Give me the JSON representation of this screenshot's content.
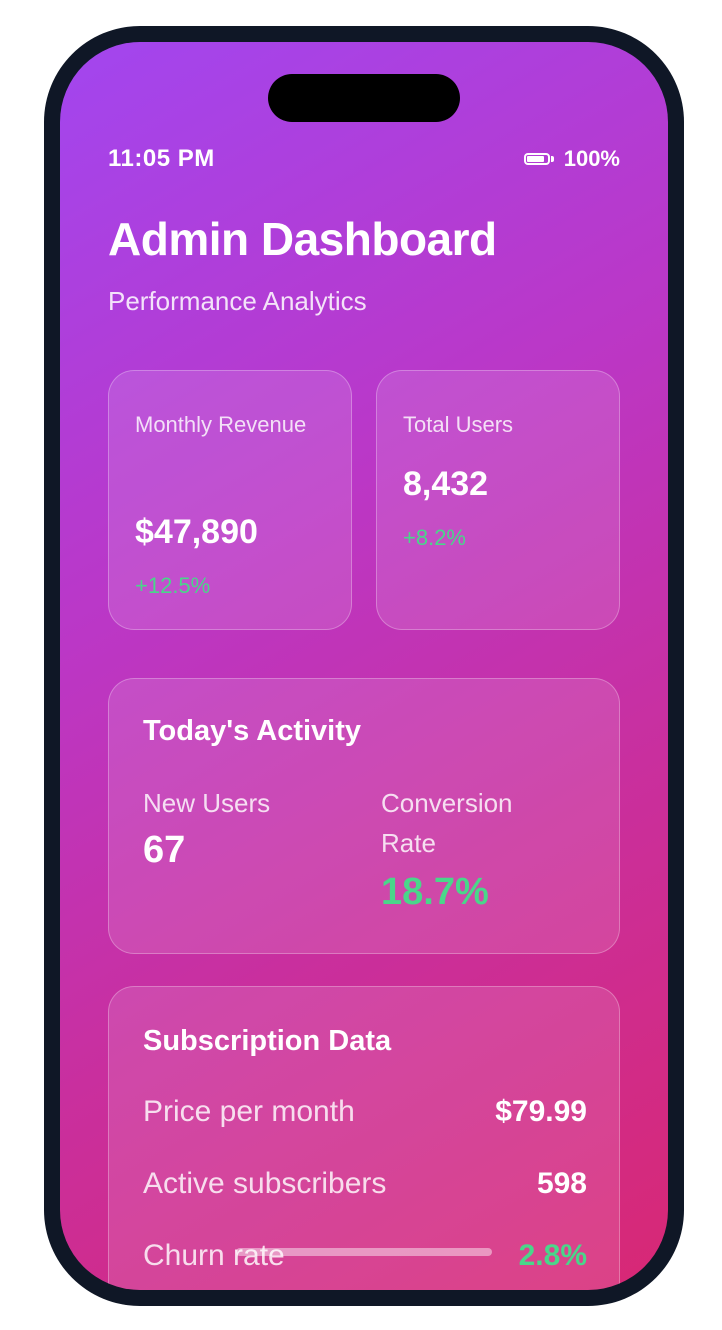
{
  "status_bar": {
    "time": "11:05 PM",
    "battery_percent": "100%",
    "battery_level": 1.0
  },
  "header": {
    "title": "Admin Dashboard",
    "subtitle": "Performance Analytics"
  },
  "stats": [
    {
      "label": "Monthly Revenue",
      "value": "$47,890",
      "change": "+12.5%"
    },
    {
      "label": "Total Users",
      "value": "8,432",
      "change": "+8.2%"
    }
  ],
  "activity": {
    "heading": "Today's Activity",
    "new_users_label": "New Users",
    "new_users_value": "67",
    "conversion_label": "Conversion Rate",
    "conversion_value": "18.7%"
  },
  "subscription": {
    "heading": "Subscription Data",
    "rows": [
      {
        "label": "Price per month",
        "value": "$79.99"
      },
      {
        "label": "Active subscribers",
        "value": "598"
      },
      {
        "label": "Churn rate",
        "value": "2.8%"
      }
    ]
  },
  "colors": {
    "positive": "#4ad68a",
    "gradient_start": "#a246ef",
    "gradient_end": "#d82874",
    "frame": "#0f1726"
  },
  "icons": [
    "battery-icon"
  ]
}
